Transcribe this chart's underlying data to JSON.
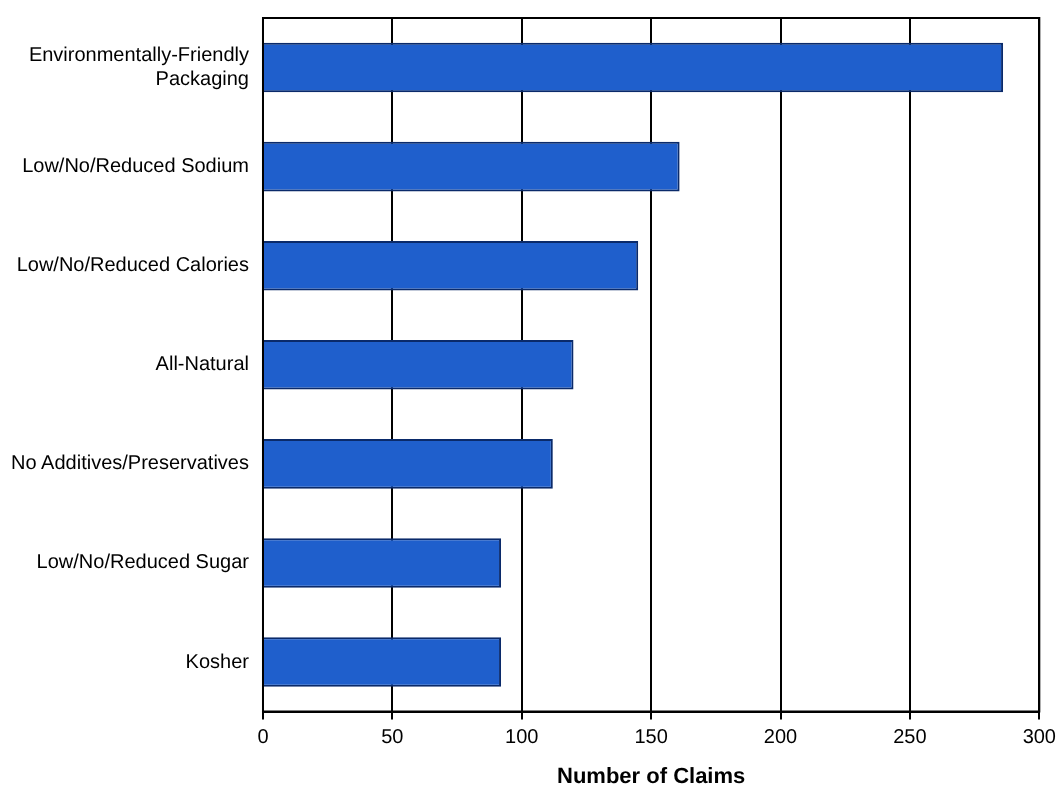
{
  "chart_data": {
    "type": "bar",
    "orientation": "horizontal",
    "xlabel": "Number of Claims",
    "categories": [
      "Environmentally-Friendly Packaging",
      "Low/No/Reduced Sodium",
      "Low/No/Reduced Calories",
      "All-Natural",
      "No Additives/Preservatives",
      "Low/No/Reduced Sugar",
      "Kosher"
    ],
    "values": [
      286,
      161,
      145,
      120,
      112,
      92,
      92
    ],
    "color": "#1f5fcc",
    "xlim": [
      0,
      300
    ],
    "xticks": [
      0,
      50,
      100,
      150,
      200,
      250,
      300
    ],
    "grid": "x",
    "legend": false
  }
}
